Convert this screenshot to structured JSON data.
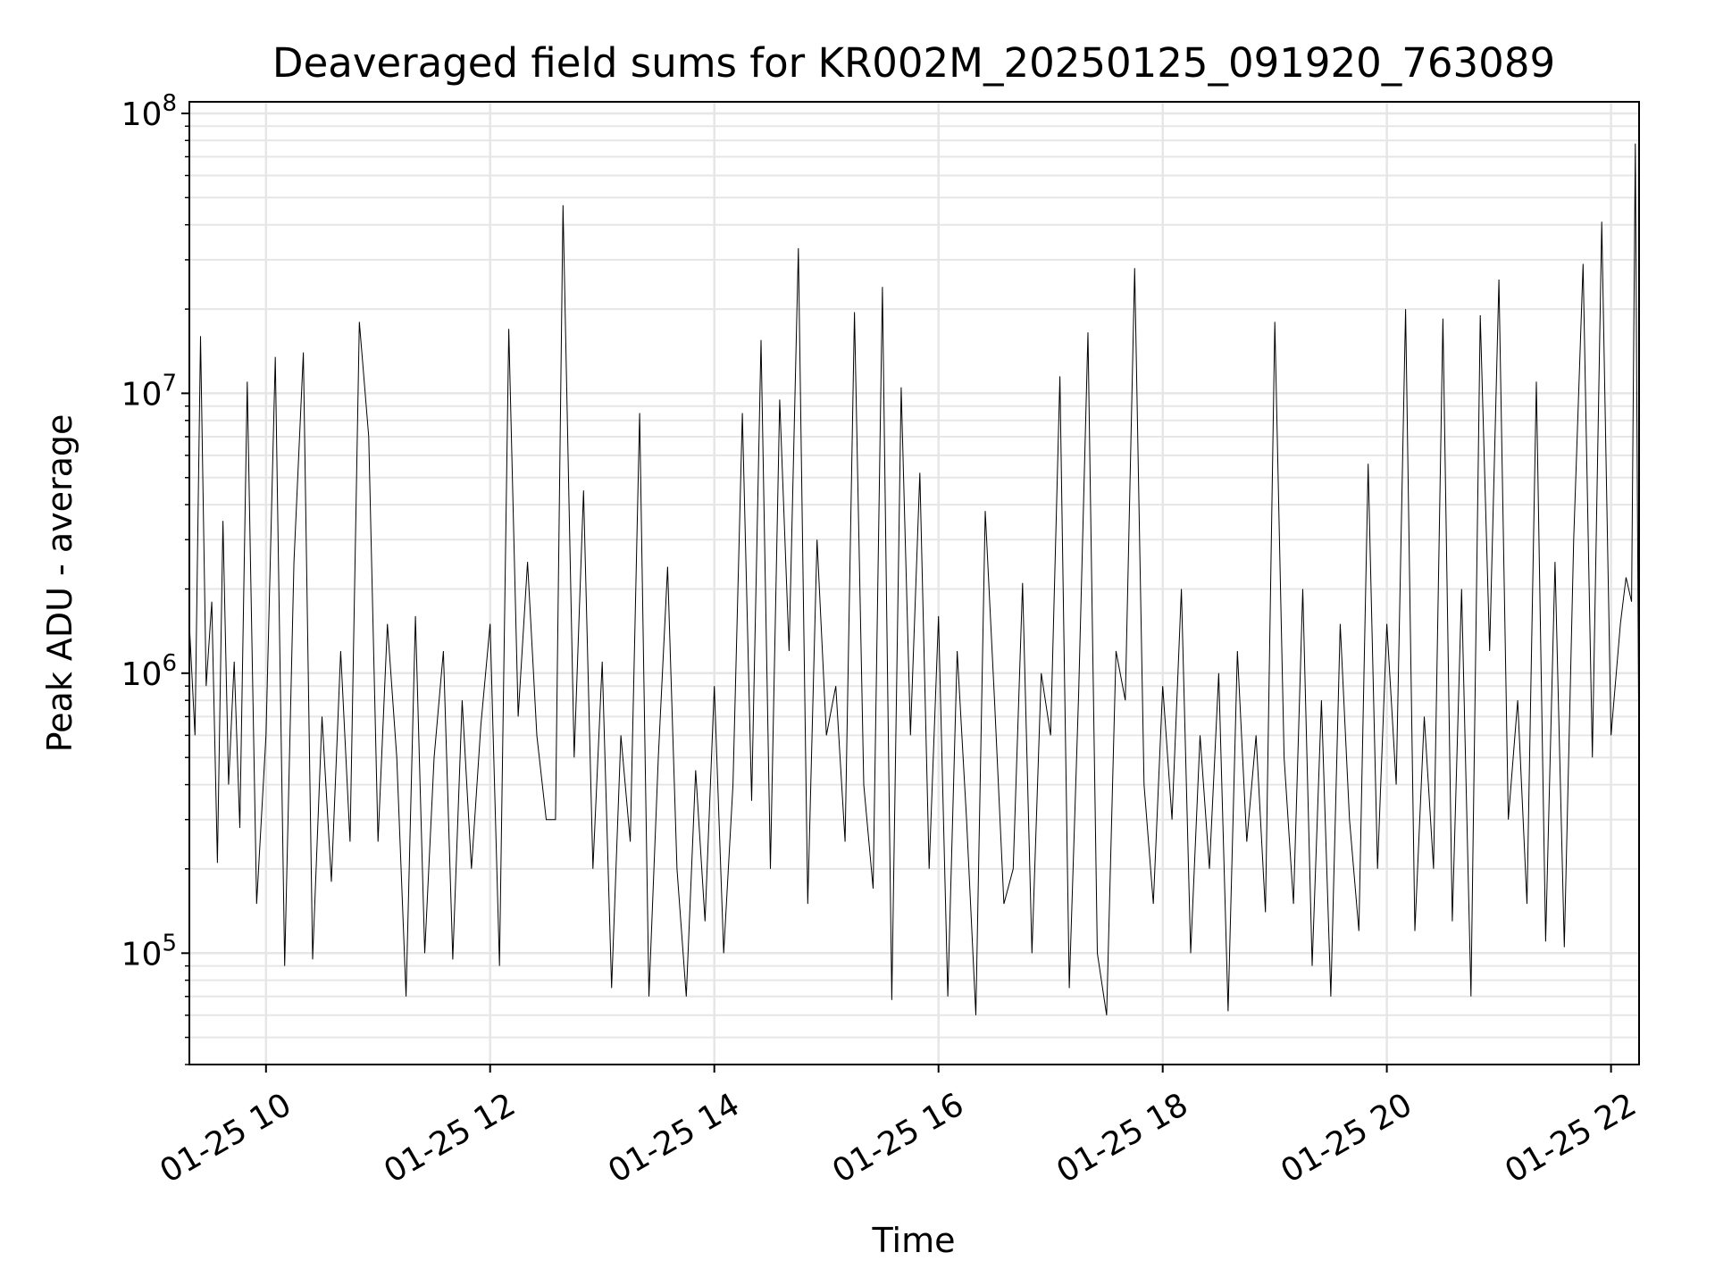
{
  "chart_data": {
    "type": "line",
    "title": "Deaveraged field sums for KR002M_20250125_091920_763089",
    "xlabel": "Time",
    "ylabel": "Peak ADU - average",
    "y_scale": "log",
    "ylim": [
      40000,
      110000000
    ],
    "xlim": [
      "01-25 09:19",
      "01-25 22:15"
    ],
    "grid": "on",
    "grid_minor": "on",
    "line_color": "#000000",
    "grid_color": "#e6e6e6",
    "x_ticks": [
      {
        "x": "01-25 10:00",
        "label": "01-25 10"
      },
      {
        "x": "01-25 12:00",
        "label": "01-25 12"
      },
      {
        "x": "01-25 14:00",
        "label": "01-25 14"
      },
      {
        "x": "01-25 16:00",
        "label": "01-25 16"
      },
      {
        "x": "01-25 18:00",
        "label": "01-25 18"
      },
      {
        "x": "01-25 20:00",
        "label": "01-25 20"
      },
      {
        "x": "01-25 22:00",
        "label": "01-25 22"
      }
    ],
    "y_ticks": [
      {
        "value": 100000,
        "base": "10",
        "exp": "5"
      },
      {
        "value": 1000000,
        "base": "10",
        "exp": "6"
      },
      {
        "value": 10000000,
        "base": "10",
        "exp": "7"
      },
      {
        "value": 100000000,
        "base": "10",
        "exp": "8"
      }
    ],
    "series": [
      {
        "x": [
          "01-25 09:19",
          "01-25 09:22",
          "01-25 09:25",
          "01-25 09:28",
          "01-25 09:31",
          "01-25 09:34",
          "01-25 09:37",
          "01-25 09:40",
          "01-25 09:43",
          "01-25 09:46",
          "01-25 09:50",
          "01-25 09:55",
          "01-25 10:00",
          "01-25 10:05",
          "01-25 10:10",
          "01-25 10:15",
          "01-25 10:20",
          "01-25 10:25",
          "01-25 10:30",
          "01-25 10:35",
          "01-25 10:40",
          "01-25 10:45",
          "01-25 10:50",
          "01-25 10:55",
          "01-25 11:00",
          "01-25 11:05",
          "01-25 11:10",
          "01-25 11:15",
          "01-25 11:20",
          "01-25 11:25",
          "01-25 11:30",
          "01-25 11:35",
          "01-25 11:40",
          "01-25 11:45",
          "01-25 11:50",
          "01-25 11:55",
          "01-25 12:00",
          "01-25 12:05",
          "01-25 12:10",
          "01-25 12:15",
          "01-25 12:20",
          "01-25 12:25",
          "01-25 12:30",
          "01-25 12:35",
          "01-25 12:39",
          "01-25 12:45",
          "01-25 12:50",
          "01-25 12:55",
          "01-25 13:00",
          "01-25 13:05",
          "01-25 13:10",
          "01-25 13:15",
          "01-25 13:20",
          "01-25 13:25",
          "01-25 13:30",
          "01-25 13:35",
          "01-25 13:40",
          "01-25 13:45",
          "01-25 13:50",
          "01-25 13:55",
          "01-25 14:00",
          "01-25 14:05",
          "01-25 14:10",
          "01-25 14:15",
          "01-25 14:20",
          "01-25 14:25",
          "01-25 14:30",
          "01-25 14:35",
          "01-25 14:40",
          "01-25 14:45",
          "01-25 14:50",
          "01-25 14:55",
          "01-25 15:00",
          "01-25 15:05",
          "01-25 15:10",
          "01-25 15:15",
          "01-25 15:20",
          "01-25 15:25",
          "01-25 15:30",
          "01-25 15:35",
          "01-25 15:40",
          "01-25 15:45",
          "01-25 15:50",
          "01-25 15:55",
          "01-25 16:00",
          "01-25 16:05",
          "01-25 16:10",
          "01-25 16:15",
          "01-25 16:20",
          "01-25 16:25",
          "01-25 16:30",
          "01-25 16:35",
          "01-25 16:40",
          "01-25 16:45",
          "01-25 16:50",
          "01-25 16:55",
          "01-25 17:00",
          "01-25 17:05",
          "01-25 17:10",
          "01-25 17:15",
          "01-25 17:20",
          "01-25 17:25",
          "01-25 17:30",
          "01-25 17:35",
          "01-25 17:40",
          "01-25 17:45",
          "01-25 17:50",
          "01-25 17:55",
          "01-25 18:00",
          "01-25 18:05",
          "01-25 18:10",
          "01-25 18:15",
          "01-25 18:20",
          "01-25 18:25",
          "01-25 18:30",
          "01-25 18:35",
          "01-25 18:40",
          "01-25 18:45",
          "01-25 18:50",
          "01-25 18:55",
          "01-25 19:00",
          "01-25 19:05",
          "01-25 19:10",
          "01-25 19:15",
          "01-25 19:20",
          "01-25 19:25",
          "01-25 19:30",
          "01-25 19:35",
          "01-25 19:40",
          "01-25 19:45",
          "01-25 19:50",
          "01-25 19:55",
          "01-25 20:00",
          "01-25 20:05",
          "01-25 20:10",
          "01-25 20:15",
          "01-25 20:20",
          "01-25 20:25",
          "01-25 20:30",
          "01-25 20:35",
          "01-25 20:40",
          "01-25 20:45",
          "01-25 20:50",
          "01-25 20:55",
          "01-25 21:00",
          "01-25 21:05",
          "01-25 21:10",
          "01-25 21:15",
          "01-25 21:20",
          "01-25 21:25",
          "01-25 21:30",
          "01-25 21:35",
          "01-25 21:40",
          "01-25 21:45",
          "01-25 21:50",
          "01-25 21:55",
          "01-25 22:00",
          "01-25 22:05",
          "01-25 22:08",
          "01-25 22:11",
          "01-25 22:13",
          "01-25 22:15"
        ],
        "y": [
          1500000,
          600000,
          16000000,
          900000,
          1800000,
          210000,
          3500000,
          400000,
          1100000,
          280000,
          11000000,
          150000,
          600000,
          13500000,
          90000,
          2500000,
          14000000,
          95000,
          700000,
          180000,
          1200000,
          250000,
          18000000,
          7000000,
          250000,
          1500000,
          500000,
          70000,
          1600000,
          100000,
          500000,
          1200000,
          95000,
          800000,
          200000,
          650000,
          1500000,
          90000,
          17000000,
          700000,
          2500000,
          600000,
          300000,
          300000,
          47000000,
          500000,
          4500000,
          200000,
          1100000,
          75000,
          600000,
          250000,
          8500000,
          70000,
          500000,
          2400000,
          200000,
          70000,
          450000,
          130000,
          900000,
          100000,
          400000,
          8500000,
          350000,
          15500000,
          200000,
          9500000,
          1200000,
          33000000,
          150000,
          3000000,
          600000,
          900000,
          250000,
          19500000,
          400000,
          170000,
          24000000,
          68000,
          10500000,
          600000,
          5200000,
          200000,
          1600000,
          70000,
          1200000,
          300000,
          60000,
          3800000,
          800000,
          150000,
          200000,
          2100000,
          100000,
          1000000,
          600000,
          11500000,
          75000,
          850000,
          16500000,
          100000,
          60000,
          1200000,
          800000,
          28000000,
          400000,
          150000,
          900000,
          300000,
          2000000,
          100000,
          600000,
          200000,
          1000000,
          62000,
          1200000,
          250000,
          600000,
          140000,
          18000000,
          500000,
          150000,
          2000000,
          90000,
          800000,
          70000,
          1500000,
          300000,
          120000,
          5600000,
          200000,
          1500000,
          400000,
          20000000,
          120000,
          700000,
          200000,
          18500000,
          130000,
          2000000,
          70000,
          19000000,
          1200000,
          25500000,
          300000,
          800000,
          150000,
          11000000,
          110000,
          2500000,
          105000,
          3000000,
          29000000,
          500000,
          41000000,
          600000,
          1500000,
          2200000,
          1800000,
          78000000,
          400000
        ],
        "linewidth": 1
      }
    ]
  }
}
